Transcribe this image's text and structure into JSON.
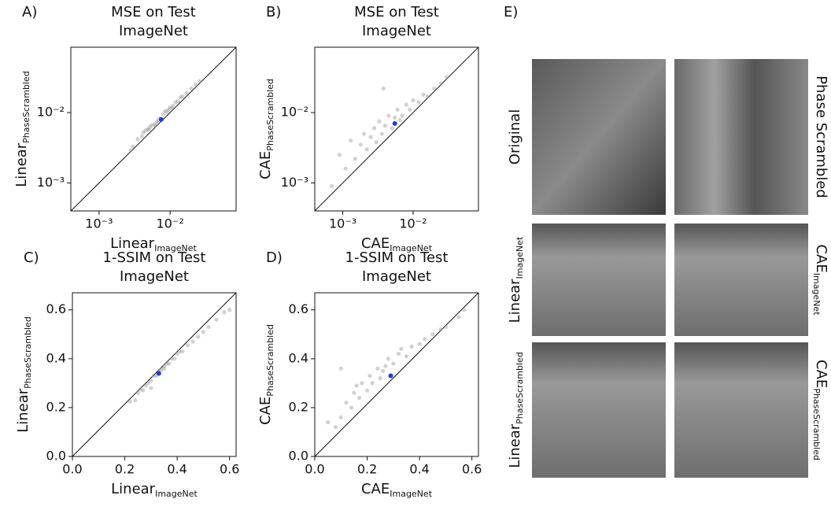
{
  "chart_data": [
    {
      "type": "scatter",
      "panel": "A)",
      "title": [
        "MSE on Test",
        "ImageNet"
      ],
      "xlabel": "Linear",
      "xlabel_sub": "ImageNet",
      "ylabel": "Linear",
      "ylabel_sub": "PhaseScrambled",
      "log": true,
      "xlim": [
        0.0004,
        0.085
      ],
      "ylim": [
        0.0004,
        0.085
      ],
      "xticks": [
        {
          "value": 0.001,
          "label": "10⁻³"
        },
        {
          "value": 0.01,
          "label": "10⁻²"
        }
      ],
      "yticks": [
        {
          "value": 0.001,
          "label": "10⁻³"
        },
        {
          "value": 0.01,
          "label": "10⁻²"
        }
      ],
      "series": [
        {
          "color": "#9a9a9a",
          "x": [
            0.003,
            0.0035,
            0.004,
            0.0045,
            0.005,
            0.0055,
            0.006,
            0.0065,
            0.007,
            0.008,
            0.009,
            0.01,
            0.011,
            0.012,
            0.013,
            0.015,
            0.017,
            0.02,
            0.023,
            0.026,
            0.0028,
            0.0042,
            0.0052,
            0.0062,
            0.0085,
            0.0095,
            0.0105,
            0.014,
            0.0048,
            0.0068
          ],
          "values": [
            0.0033,
            0.0042,
            0.0046,
            0.0055,
            0.0057,
            0.0066,
            0.0068,
            0.0075,
            0.0082,
            0.0095,
            0.0102,
            0.0118,
            0.0125,
            0.014,
            0.0145,
            0.017,
            0.019,
            0.022,
            0.025,
            0.028,
            0.0029,
            0.0052,
            0.0062,
            0.0065,
            0.0105,
            0.011,
            0.0115,
            0.0165,
            0.0058,
            0.0072
          ]
        },
        {
          "color": "#1f3fd1",
          "x": [
            0.0075
          ],
          "values": [
            0.008
          ]
        }
      ]
    },
    {
      "type": "scatter",
      "panel": "B)",
      "title": [
        "MSE on Test",
        "ImageNet"
      ],
      "xlabel": "CAE",
      "xlabel_sub": "ImageNet",
      "ylabel": "CAE",
      "ylabel_sub": "PhaseScrambled",
      "log": true,
      "xlim": [
        0.0004,
        0.085
      ],
      "ylim": [
        0.0004,
        0.085
      ],
      "xticks": [
        {
          "value": 0.001,
          "label": "10⁻³"
        },
        {
          "value": 0.01,
          "label": "10⁻²"
        }
      ],
      "yticks": [
        {
          "value": 0.001,
          "label": "10⁻³"
        },
        {
          "value": 0.01,
          "label": "10⁻²"
        }
      ],
      "series": [
        {
          "color": "#9a9a9a",
          "x": [
            0.0007,
            0.0009,
            0.0011,
            0.0013,
            0.0015,
            0.0018,
            0.002,
            0.0022,
            0.0025,
            0.0028,
            0.003,
            0.0033,
            0.0036,
            0.004,
            0.0045,
            0.005,
            0.0055,
            0.006,
            0.007,
            0.008,
            0.009,
            0.01,
            0.012,
            0.014,
            0.016,
            0.02,
            0.025,
            0.03,
            0.0038,
            0.0065
          ],
          "values": [
            0.0009,
            0.0025,
            0.0016,
            0.004,
            0.0022,
            0.0035,
            0.005,
            0.003,
            0.0045,
            0.006,
            0.0038,
            0.0075,
            0.005,
            0.0065,
            0.009,
            0.006,
            0.0085,
            0.011,
            0.009,
            0.013,
            0.011,
            0.015,
            0.014,
            0.018,
            0.017,
            0.022,
            0.026,
            0.032,
            0.022,
            0.0078
          ]
        },
        {
          "color": "#1f3fd1",
          "x": [
            0.0055
          ],
          "values": [
            0.007
          ]
        }
      ]
    },
    {
      "type": "scatter",
      "panel": "C)",
      "title": [
        "1-SSIM on Test",
        "ImageNet"
      ],
      "xlabel": "Linear",
      "xlabel_sub": "ImageNet",
      "ylabel": "Linear",
      "ylabel_sub": "PhaseScrambled",
      "log": false,
      "xlim": [
        0,
        0.625
      ],
      "ylim": [
        0,
        0.67
      ],
      "xticks": [
        {
          "value": 0,
          "label": "0.0"
        },
        0.2,
        0.4,
        0.6
      ],
      "yticks": [
        {
          "value": 0,
          "label": "0.0"
        },
        0.2,
        0.4,
        0.6
      ],
      "series": [
        {
          "color": "#9a9a9a",
          "x": [
            0.22,
            0.24,
            0.25,
            0.26,
            0.27,
            0.28,
            0.29,
            0.3,
            0.31,
            0.32,
            0.33,
            0.34,
            0.35,
            0.36,
            0.37,
            0.38,
            0.39,
            0.4,
            0.42,
            0.44,
            0.46,
            0.48,
            0.5,
            0.52,
            0.55,
            0.58,
            0.6,
            0.3,
            0.35,
            0.41
          ],
          "values": [
            0.225,
            0.23,
            0.26,
            0.275,
            0.27,
            0.29,
            0.3,
            0.31,
            0.33,
            0.33,
            0.35,
            0.355,
            0.36,
            0.38,
            0.38,
            0.4,
            0.4,
            0.42,
            0.43,
            0.455,
            0.47,
            0.49,
            0.51,
            0.53,
            0.56,
            0.59,
            0.6,
            0.28,
            0.37,
            0.43
          ]
        },
        {
          "color": "#1f3fd1",
          "x": [
            0.33
          ],
          "values": [
            0.34
          ]
        }
      ]
    },
    {
      "type": "scatter",
      "panel": "D)",
      "title": [
        "1-SSIM on Test",
        "ImageNet"
      ],
      "xlabel": "CAE",
      "xlabel_sub": "ImageNet",
      "ylabel": "CAE",
      "ylabel_sub": "PhaseScrambled",
      "log": false,
      "xlim": [
        0,
        0.625
      ],
      "ylim": [
        0,
        0.67
      ],
      "xticks": [
        {
          "value": 0,
          "label": "0.0"
        },
        0.2,
        0.4,
        0.6
      ],
      "yticks": [
        {
          "value": 0,
          "label": "0.0"
        },
        0.2,
        0.4,
        0.6
      ],
      "series": [
        {
          "color": "#9a9a9a",
          "x": [
            0.05,
            0.08,
            0.1,
            0.12,
            0.14,
            0.15,
            0.17,
            0.18,
            0.2,
            0.21,
            0.22,
            0.24,
            0.25,
            0.27,
            0.28,
            0.3,
            0.32,
            0.33,
            0.35,
            0.37,
            0.4,
            0.42,
            0.45,
            0.48,
            0.5,
            0.55,
            0.57,
            0.1,
            0.16,
            0.26
          ],
          "values": [
            0.14,
            0.12,
            0.16,
            0.22,
            0.2,
            0.26,
            0.24,
            0.3,
            0.27,
            0.33,
            0.3,
            0.36,
            0.32,
            0.37,
            0.4,
            0.38,
            0.42,
            0.44,
            0.41,
            0.45,
            0.46,
            0.48,
            0.5,
            0.52,
            0.53,
            0.57,
            0.6,
            0.36,
            0.29,
            0.35
          ]
        },
        {
          "color": "#1f3fd1",
          "x": [
            0.29
          ],
          "values": [
            0.33
          ]
        }
      ]
    }
  ],
  "panel_e": {
    "panel": "E)",
    "left_labels": [
      {
        "text": "Original"
      },
      {
        "text": "Linear",
        "sub": "ImageNet"
      },
      {
        "text": "Linear",
        "sub": "PhaseScrambled"
      }
    ],
    "right_labels": [
      {
        "text": "Phase Scrambled"
      },
      {
        "text": "CAE",
        "sub": "ImageNet"
      },
      {
        "text": "CAE",
        "sub": "PhaseScrambled"
      }
    ]
  }
}
